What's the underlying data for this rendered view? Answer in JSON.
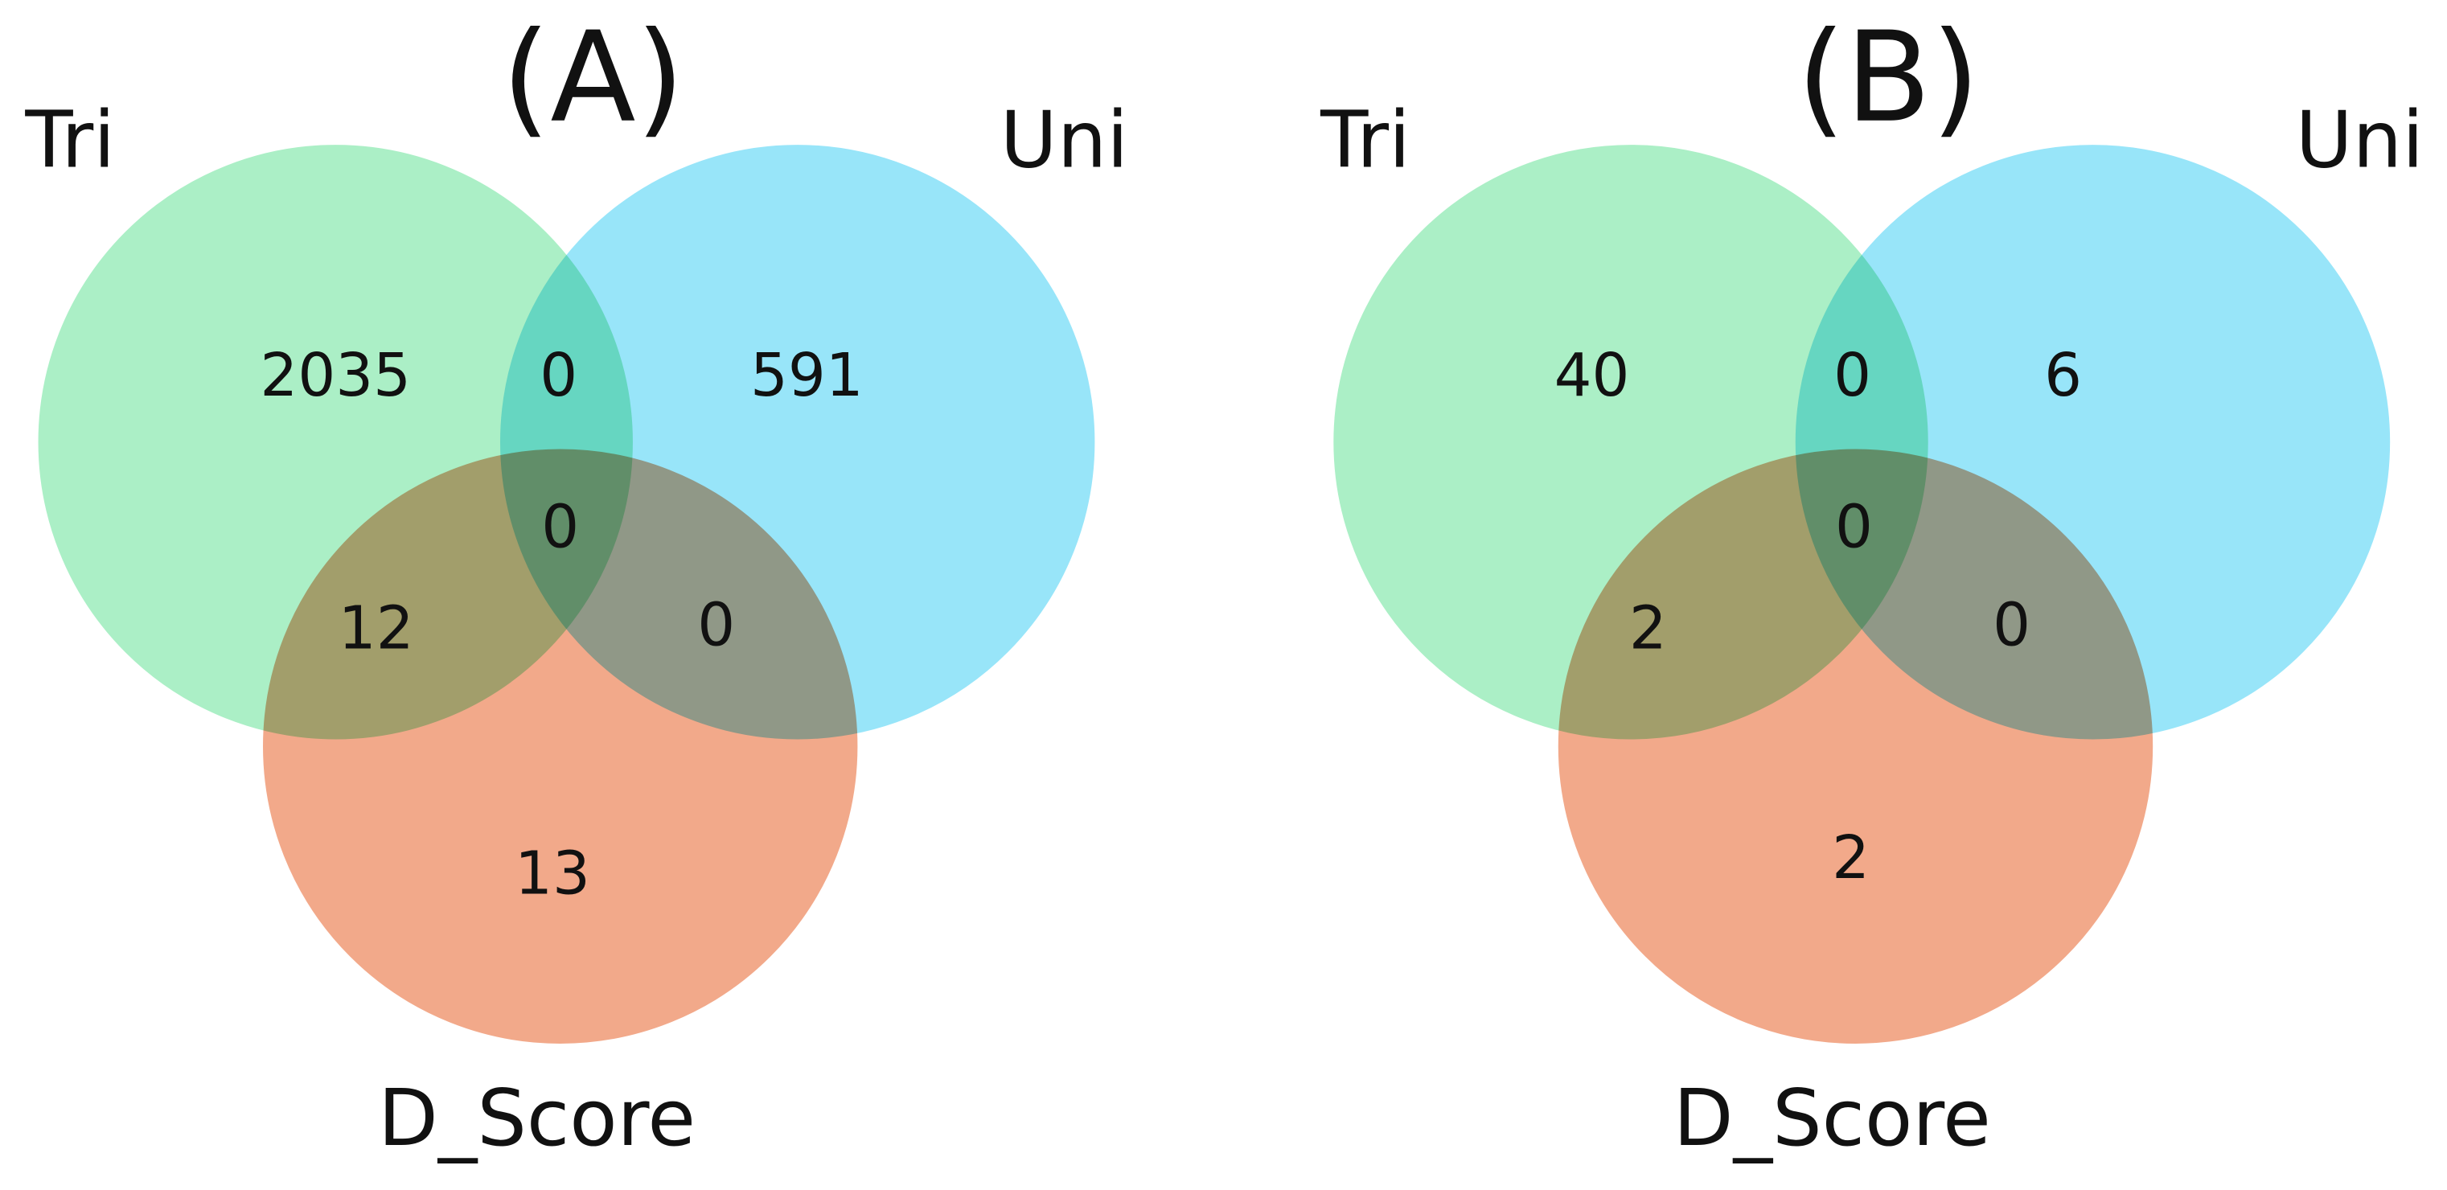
{
  "chart_data": [
    {
      "type": "venn",
      "title": "(A)",
      "sets": [
        {
          "name": "Tri",
          "color": "#abefc6"
        },
        {
          "name": "Uni",
          "color": "#98e5f9"
        },
        {
          "name": "D_Score",
          "color": "#f2a98a"
        }
      ],
      "regions": {
        "100": 2035,
        "110": 0,
        "010": 591,
        "111": 0,
        "101": 12,
        "011": 0,
        "001": 13
      }
    },
    {
      "type": "venn",
      "title": "(B)",
      "sets": [
        {
          "name": "Tri",
          "color": "#abefc6"
        },
        {
          "name": "Uni",
          "color": "#98e5f9"
        },
        {
          "name": "D_Score",
          "color": "#f2a98a"
        }
      ],
      "regions": {
        "100": 40,
        "110": 0,
        "010": 6,
        "111": 0,
        "101": 2,
        "011": 0,
        "001": 2
      }
    }
  ]
}
